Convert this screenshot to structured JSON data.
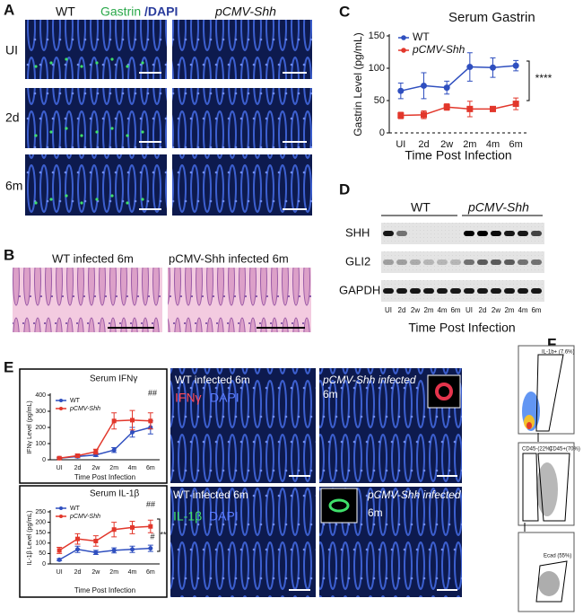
{
  "panel_labels": [
    "A",
    "B",
    "C",
    "D",
    "E",
    "F"
  ],
  "panel_a": {
    "col_wt": "WT",
    "stain_1": "Gastrin",
    "stain_2": "/DAPI",
    "col_shh": "pCMV-Shh",
    "rows": [
      "UI",
      "2d",
      "6m"
    ]
  },
  "panel_b": {
    "titles": [
      "WT infected 6m",
      "pCMV-Shh infected 6m"
    ]
  },
  "panel_d": {
    "groups": [
      "WT",
      "pCMV-Shh"
    ],
    "proteins": [
      "SHH",
      "GLI2",
      "GAPDH"
    ],
    "lanes": [
      "UI",
      "2d",
      "2w",
      "2m",
      "4m",
      "6m",
      "UI",
      "2d",
      "2w",
      "2m",
      "4m",
      "6m"
    ],
    "xlabel": "Time  Post Infection"
  },
  "panel_e": {
    "top": {
      "title": "WT infected 6m",
      "stain": "IFNγ",
      "dapi": "DAPI",
      "shh_title": "pCMV-Shh infected",
      "shh_time": "6m"
    },
    "bottom": {
      "title": "WT infected 6m",
      "stain": "IL-1β",
      "dapi": "DAPI",
      "shh_title": "pCMV-Shh infected",
      "shh_time": "6m"
    }
  },
  "panel_f": {
    "gates": [
      "IL-1b+ (7.6%)",
      "CD45-(22%)",
      "CD45+(70%)",
      "Ecad (55%)"
    ]
  },
  "chart_data": [
    {
      "type": "line",
      "title": "Serum Gastrin",
      "ylabel": "Gastrin Level (pg/mL)",
      "xlabel": "Time  Post Infection",
      "categories": [
        "UI",
        "2d",
        "2w",
        "2m",
        "4m",
        "6m"
      ],
      "ylim": [
        0,
        150
      ],
      "yticks": [
        0,
        50,
        100,
        150
      ],
      "series": [
        {
          "name": "WT",
          "color": "#2f4fbf",
          "values": [
            65,
            73,
            70,
            102,
            101,
            104
          ],
          "errors": [
            12,
            20,
            10,
            22,
            15,
            8
          ]
        },
        {
          "name": "pCMV-Shh",
          "color": "#e2372b",
          "values": [
            27,
            28,
            40,
            37,
            37,
            45
          ],
          "errors": [
            5,
            6,
            5,
            12,
            4,
            9
          ]
        }
      ],
      "annotations": [
        "****"
      ]
    },
    {
      "type": "line",
      "title": "Serum IFNγ",
      "ylabel": "IFNγ Level (pg/mL)",
      "xlabel": "Time Post Infection",
      "categories": [
        "UI",
        "2d",
        "2w",
        "2m",
        "4m",
        "6m"
      ],
      "ylim": [
        0,
        400
      ],
      "yticks": [
        0,
        100,
        200,
        300,
        400
      ],
      "series": [
        {
          "name": "WT",
          "color": "#2f4fbf",
          "values": [
            10,
            20,
            30,
            60,
            170,
            200
          ],
          "errors": [
            5,
            8,
            10,
            15,
            30,
            40
          ]
        },
        {
          "name": "pCMV-Shh",
          "color": "#e2372b",
          "values": [
            10,
            25,
            50,
            240,
            245,
            240
          ],
          "errors": [
            5,
            10,
            15,
            50,
            60,
            50
          ]
        }
      ],
      "annotations": [
        "##"
      ]
    },
    {
      "type": "line",
      "title": "Serum IL-1β",
      "ylabel": "IL-1β Level (pg/mL)",
      "xlabel": "Time Post Infection",
      "categories": [
        "UI",
        "2d",
        "2w",
        "2m",
        "4m",
        "6m"
      ],
      "ylim": [
        0,
        250
      ],
      "yticks": [
        0,
        50,
        100,
        150,
        200,
        250
      ],
      "series": [
        {
          "name": "WT",
          "color": "#2f4fbf",
          "values": [
            20,
            70,
            55,
            65,
            70,
            75
          ],
          "errors": [
            5,
            15,
            10,
            12,
            15,
            15
          ]
        },
        {
          "name": "pCMV-Shh",
          "color": "#e2372b",
          "values": [
            65,
            120,
            110,
            165,
            175,
            180
          ],
          "errors": [
            15,
            25,
            25,
            35,
            30,
            30
          ]
        }
      ],
      "annotations": [
        "##",
        "#",
        "**"
      ]
    }
  ]
}
